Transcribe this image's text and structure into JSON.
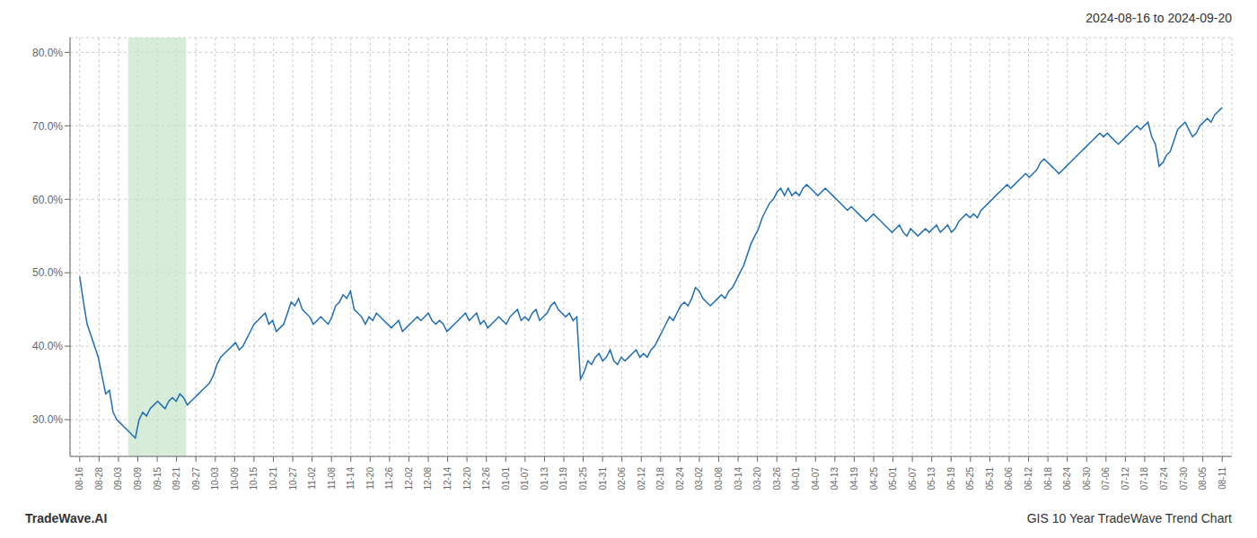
{
  "chart_data": {
    "type": "line",
    "title": "2024-08-16 to 2024-09-20",
    "annotations": [
      "TradeWave.AI",
      "GIS 10 Year TradeWave Trend Chart"
    ],
    "color": "#1f6eb5",
    "grid": true,
    "highlight": {
      "x": [
        2.5,
        5.5
      ],
      "color": "#c8e6c9"
    },
    "xlim": [
      -0.5,
      59.5
    ],
    "xticks": [
      {
        "value": 0,
        "label": "08-16"
      },
      {
        "value": 1,
        "label": "08-28"
      },
      {
        "value": 2,
        "label": "09-03"
      },
      {
        "value": 3,
        "label": "09-09"
      },
      {
        "value": 4,
        "label": "09-15"
      },
      {
        "value": 5,
        "label": "09-21"
      },
      {
        "value": 6,
        "label": "09-27"
      },
      {
        "value": 7,
        "label": "10-03"
      },
      {
        "value": 8,
        "label": "10-09"
      },
      {
        "value": 9,
        "label": "10-15"
      },
      {
        "value": 10,
        "label": "10-21"
      },
      {
        "value": 11,
        "label": "10-27"
      },
      {
        "value": 12,
        "label": "11-02"
      },
      {
        "value": 13,
        "label": "11-08"
      },
      {
        "value": 14,
        "label": "11-14"
      },
      {
        "value": 15,
        "label": "11-20"
      },
      {
        "value": 16,
        "label": "11-26"
      },
      {
        "value": 17,
        "label": "12-02"
      },
      {
        "value": 18,
        "label": "12-08"
      },
      {
        "value": 19,
        "label": "12-14"
      },
      {
        "value": 20,
        "label": "12-20"
      },
      {
        "value": 21,
        "label": "12-26"
      },
      {
        "value": 22,
        "label": "01-01"
      },
      {
        "value": 23,
        "label": "01-07"
      },
      {
        "value": 24,
        "label": "01-13"
      },
      {
        "value": 25,
        "label": "01-19"
      },
      {
        "value": 26,
        "label": "01-25"
      },
      {
        "value": 27,
        "label": "01-31"
      },
      {
        "value": 28,
        "label": "02-06"
      },
      {
        "value": 29,
        "label": "02-12"
      },
      {
        "value": 30,
        "label": "02-18"
      },
      {
        "value": 31,
        "label": "02-24"
      },
      {
        "value": 32,
        "label": "03-02"
      },
      {
        "value": 33,
        "label": "03-08"
      },
      {
        "value": 34,
        "label": "03-14"
      },
      {
        "value": 35,
        "label": "03-20"
      },
      {
        "value": 36,
        "label": "03-26"
      },
      {
        "value": 37,
        "label": "04-01"
      },
      {
        "value": 38,
        "label": "04-07"
      },
      {
        "value": 39,
        "label": "04-13"
      },
      {
        "value": 40,
        "label": "04-19"
      },
      {
        "value": 41,
        "label": "04-25"
      },
      {
        "value": 42,
        "label": "05-01"
      },
      {
        "value": 43,
        "label": "05-07"
      },
      {
        "value": 44,
        "label": "05-13"
      },
      {
        "value": 45,
        "label": "05-19"
      },
      {
        "value": 46,
        "label": "05-25"
      },
      {
        "value": 47,
        "label": "05-31"
      },
      {
        "value": 48,
        "label": "06-06"
      },
      {
        "value": 49,
        "label": "06-12"
      },
      {
        "value": 50,
        "label": "06-18"
      },
      {
        "value": 51,
        "label": "06-24"
      },
      {
        "value": 52,
        "label": "06-30"
      },
      {
        "value": 53,
        "label": "07-06"
      },
      {
        "value": 54,
        "label": "07-12"
      },
      {
        "value": 55,
        "label": "07-18"
      },
      {
        "value": 56,
        "label": "07-24"
      },
      {
        "value": 57,
        "label": "07-30"
      },
      {
        "value": 58,
        "label": "08-05"
      },
      {
        "value": 59,
        "label": "08-11"
      }
    ],
    "ylim": [
      25.0,
      82.0
    ],
    "yticks": [
      {
        "value": 30.0,
        "label": "30.0%"
      },
      {
        "value": 40.0,
        "label": "40.0%"
      },
      {
        "value": 50.0,
        "label": "50.0%"
      },
      {
        "value": 60.0,
        "label": "60.0%"
      },
      {
        "value": 70.0,
        "label": "70.0%"
      },
      {
        "value": 80.0,
        "label": "80.0%"
      }
    ],
    "x": [
      0,
      0.192,
      0.383,
      0.575,
      0.766,
      0.958,
      1.149,
      1.341,
      1.532,
      1.724,
      1.916,
      2.107,
      2.299,
      2.49,
      2.682,
      2.873,
      3.065,
      3.256,
      3.448,
      3.64,
      3.831,
      4.023,
      4.214,
      4.406,
      4.597,
      4.789,
      4.981,
      5.172,
      5.364,
      5.555,
      5.747,
      5.938,
      6.13,
      6.321,
      6.513,
      6.705,
      6.896,
      7.088,
      7.279,
      7.471,
      7.662,
      7.854,
      8.045,
      8.237,
      8.429,
      8.62,
      8.812,
      9.003,
      9.195,
      9.386,
      9.578,
      9.769,
      9.961,
      10.153,
      10.344,
      10.536,
      10.727,
      10.919,
      11.11,
      11.302,
      11.494,
      11.685,
      11.877,
      12.068,
      12.26,
      12.451,
      12.643,
      12.834,
      13.026,
      13.218,
      13.409,
      13.601,
      13.792,
      13.984,
      14.175,
      14.367,
      14.558,
      14.75,
      14.942,
      15.133,
      15.325,
      15.516,
      15.708,
      15.899,
      16.091,
      16.282,
      16.474,
      16.666,
      16.857,
      17.049,
      17.24,
      17.432,
      17.623,
      17.815,
      18.006,
      18.198,
      18.39,
      18.581,
      18.773,
      18.964,
      19.156,
      19.347,
      19.539,
      19.731,
      19.922,
      20.114,
      20.305,
      20.497,
      20.688,
      20.88,
      21.071,
      21.263,
      21.455,
      21.646,
      21.838,
      22.029,
      22.221,
      22.412,
      22.604,
      22.795,
      22.987,
      23.179,
      23.37,
      23.562,
      23.753,
      23.945,
      24.136,
      24.328,
      24.519,
      24.711,
      24.903,
      25.094,
      25.286,
      25.477,
      25.669,
      25.86,
      26.052,
      26.244,
      26.435,
      26.627,
      26.818,
      27.01,
      27.201,
      27.393,
      27.584,
      27.776,
      27.968,
      28.159,
      28.351,
      28.542,
      28.734,
      28.925,
      29.117,
      29.308,
      29.5,
      29.692,
      29.883,
      30.075,
      30.266,
      30.458,
      30.649,
      30.841,
      31.032,
      31.224,
      31.416,
      31.607,
      31.799,
      31.99,
      32.182,
      32.373,
      32.565,
      32.756,
      32.948,
      33.14,
      33.331,
      33.523,
      33.714,
      33.906,
      34.097,
      34.289,
      34.481,
      34.672,
      34.864,
      35.055,
      35.247,
      35.438,
      35.63,
      35.821,
      36.013,
      36.205,
      36.396,
      36.588,
      36.779,
      36.971,
      37.162,
      37.354,
      37.545,
      37.737,
      37.929,
      38.12,
      38.312,
      38.503,
      38.695,
      38.886,
      39.078,
      39.269,
      39.461,
      39.653,
      39.844,
      40.036,
      40.227,
      40.419,
      40.61,
      40.802,
      40.994,
      41.185,
      41.377,
      41.568,
      41.76,
      41.951,
      42.143,
      42.334,
      42.526,
      42.718,
      42.909,
      43.101,
      43.292,
      43.484,
      43.675,
      43.867,
      44.058,
      44.25,
      44.442,
      44.633,
      44.825,
      45.016,
      45.208,
      45.399,
      45.591,
      45.782,
      45.974,
      46.166,
      46.357,
      46.549,
      46.74,
      46.932,
      47.123,
      47.315,
      47.506,
      47.698,
      47.89,
      48.081,
      48.273,
      48.464,
      48.656,
      48.847,
      49.039,
      49.231,
      49.422,
      49.614,
      49.805,
      49.997,
      50.188,
      50.38,
      50.571,
      50.763,
      50.955,
      51.146,
      51.338,
      51.529,
      51.721,
      51.912,
      52.104,
      52.295,
      52.487,
      52.679,
      52.87,
      53.062,
      53.253,
      53.445,
      53.636,
      53.828,
      54.019,
      54.211,
      54.403,
      54.594,
      54.786,
      54.977,
      55.169,
      55.36,
      55.552,
      55.744,
      55.935,
      56.127,
      56.318,
      56.51,
      56.701,
      56.893,
      57.084,
      57.276,
      57.468,
      57.659,
      57.851,
      58.042,
      58.234,
      58.425,
      58.617,
      58.808,
      59
    ],
    "values": [
      49.5,
      46.0,
      43.0,
      41.5,
      40.0,
      38.5,
      36.0,
      33.5,
      34.0,
      31.0,
      30.0,
      29.5,
      29.0,
      28.5,
      28.0,
      27.5,
      30.0,
      31.0,
      30.5,
      31.5,
      32.0,
      32.5,
      32.0,
      31.5,
      32.5,
      33.0,
      32.5,
      33.5,
      33.0,
      32.0,
      32.5,
      33.0,
      33.5,
      34.0,
      34.5,
      35.0,
      36.0,
      37.5,
      38.5,
      39.0,
      39.5,
      40.0,
      40.5,
      39.5,
      40.0,
      41.0,
      42.0,
      43.0,
      43.5,
      44.0,
      44.5,
      43.0,
      43.5,
      42.0,
      42.5,
      43.0,
      44.5,
      46.0,
      45.5,
      46.5,
      45.0,
      44.5,
      44.0,
      43.0,
      43.5,
      44.0,
      43.5,
      43.0,
      44.0,
      45.5,
      46.0,
      47.0,
      46.5,
      47.5,
      45.0,
      44.5,
      44.0,
      43.0,
      44.0,
      43.5,
      44.5,
      44.0,
      43.5,
      43.0,
      42.5,
      43.0,
      43.5,
      42.0,
      42.5,
      43.0,
      43.5,
      44.0,
      43.5,
      44.0,
      44.5,
      43.5,
      43.0,
      43.5,
      43.0,
      42.0,
      42.5,
      43.0,
      43.5,
      44.0,
      44.5,
      43.5,
      44.0,
      44.5,
      43.0,
      43.5,
      42.5,
      43.0,
      43.5,
      44.0,
      43.5,
      43.0,
      44.0,
      44.5,
      45.0,
      43.5,
      44.0,
      43.5,
      44.5,
      45.0,
      43.5,
      44.0,
      44.5,
      45.5,
      46.0,
      45.0,
      44.5,
      44.0,
      44.5,
      43.5,
      44.0,
      35.5,
      36.5,
      38.0,
      37.5,
      38.5,
      39.0,
      38.0,
      38.5,
      39.5,
      38.0,
      37.5,
      38.5,
      38.0,
      38.5,
      39.0,
      39.5,
      38.5,
      39.0,
      38.5,
      39.5,
      40.0,
      41.0,
      42.0,
      43.0,
      44.0,
      43.5,
      44.5,
      45.5,
      46.0,
      45.5,
      46.5,
      48.0,
      47.5,
      46.5,
      46.0,
      45.5,
      46.0,
      46.5,
      47.0,
      46.5,
      47.5,
      48.0,
      49.0,
      50.0,
      51.0,
      52.5,
      54.0,
      55.0,
      56.0,
      57.5,
      58.5,
      59.5,
      60.0,
      61.0,
      61.5,
      60.5,
      61.5,
      60.5,
      61.0,
      60.5,
      61.5,
      62.0,
      61.5,
      61.0,
      60.5,
      61.0,
      61.5,
      61.0,
      60.5,
      60.0,
      59.5,
      59.0,
      58.5,
      59.0,
      58.5,
      58.0,
      57.5,
      57.0,
      57.5,
      58.0,
      57.5,
      57.0,
      56.5,
      56.0,
      55.5,
      56.0,
      56.5,
      55.5,
      55.0,
      56.0,
      55.5,
      55.0,
      55.5,
      56.0,
      55.5,
      56.0,
      56.5,
      55.5,
      56.0,
      56.5,
      55.5,
      56.0,
      57.0,
      57.5,
      58.0,
      57.5,
      58.0,
      57.5,
      58.5,
      59.0,
      59.5,
      60.0,
      60.5,
      61.0,
      61.5,
      62.0,
      61.5,
      62.0,
      62.5,
      63.0,
      63.5,
      63.0,
      63.5,
      64.0,
      65.0,
      65.5,
      65.0,
      64.5,
      64.0,
      63.5,
      64.0,
      64.5,
      65.0,
      65.5,
      66.0,
      66.5,
      67.0,
      67.5,
      68.0,
      68.5,
      69.0,
      68.5,
      69.0,
      68.5,
      68.0,
      67.5,
      68.0,
      68.5,
      69.0,
      69.5,
      70.0,
      69.5,
      70.0,
      70.5,
      68.5,
      67.5,
      64.5,
      65.0,
      66.0,
      66.5,
      68.0,
      69.5,
      70.0,
      70.5,
      69.5,
      68.5,
      69.0,
      70.0,
      70.5,
      71.0,
      70.5,
      71.5,
      72.0,
      72.5
    ]
  }
}
